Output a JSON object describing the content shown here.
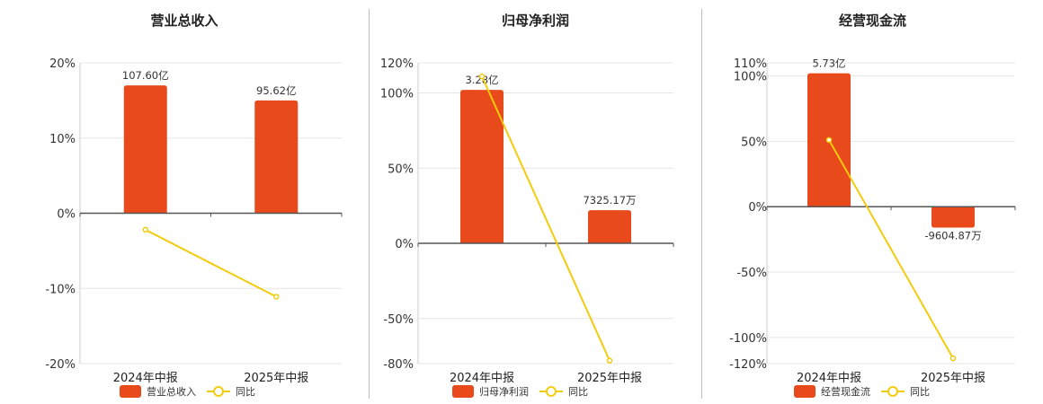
{
  "chart_data": [
    {
      "type": "bar",
      "title": "营业总收入",
      "categories": [
        "2024年中报",
        "2025年中报"
      ],
      "series": [
        {
          "name": "营业总收入",
          "type": "bar",
          "values": [
            17,
            15
          ],
          "labels": [
            "107.60亿",
            "95.62亿"
          ],
          "color": "#e84a1b"
        },
        {
          "name": "同比",
          "type": "line",
          "values": [
            -2.2,
            -11.1
          ],
          "color": "#f2cc0c"
        }
      ],
      "ylim": [
        -20,
        20
      ],
      "yticks": [
        20,
        10,
        0,
        -10,
        -20
      ],
      "ytick_labels": [
        "20%",
        "10%",
        "0%",
        "-10%",
        "-20%"
      ],
      "grid": true,
      "legend": "bottom"
    },
    {
      "type": "bar",
      "title": "归母净利润",
      "categories": [
        "2024年中报",
        "2025年中报"
      ],
      "series": [
        {
          "name": "归母净利润",
          "type": "bar",
          "values": [
            102,
            22
          ],
          "labels": [
            "3.28亿",
            "7325.17万"
          ],
          "color": "#e84a1b"
        },
        {
          "name": "同比",
          "type": "line",
          "values": [
            111,
            -78
          ],
          "color": "#f2cc0c"
        }
      ],
      "ylim": [
        -80,
        120
      ],
      "yticks": [
        120,
        100,
        50,
        0,
        -50,
        -80
      ],
      "ytick_labels": [
        "120%",
        "100%",
        "50%",
        "0%",
        "-50%",
        "-80%"
      ],
      "grid": true,
      "legend": "bottom"
    },
    {
      "type": "bar",
      "title": "经营现金流",
      "categories": [
        "2024年中报",
        "2025年中报"
      ],
      "series": [
        {
          "name": "经营现金流",
          "type": "bar",
          "values": [
            102,
            -16
          ],
          "labels": [
            "5.73亿",
            "-9604.87万"
          ],
          "color": "#e84a1b"
        },
        {
          "name": "同比",
          "type": "line",
          "values": [
            51,
            -116
          ],
          "color": "#f2cc0c"
        }
      ],
      "ylim": [
        -120,
        110
      ],
      "yticks": [
        110,
        100,
        50,
        0,
        -50,
        -100,
        -120
      ],
      "ytick_labels": [
        "110%",
        "100%",
        "50%",
        "0%",
        "-50%",
        "-100%",
        "-120%"
      ],
      "grid": true,
      "legend": "bottom"
    }
  ]
}
